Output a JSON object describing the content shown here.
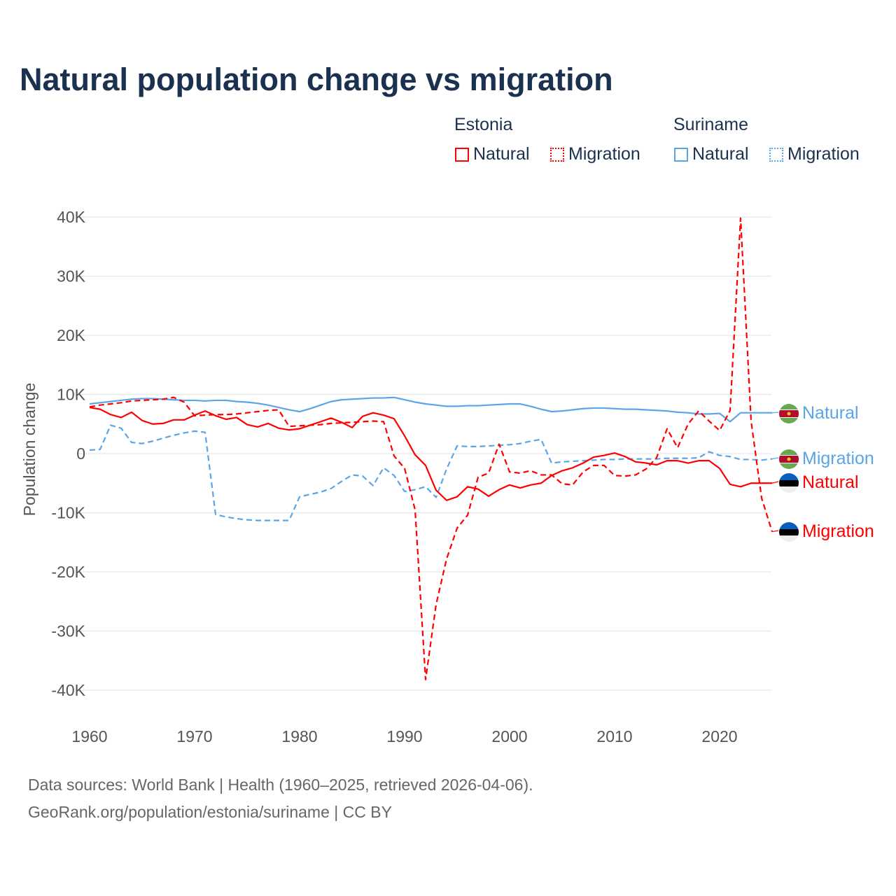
{
  "chart_data": {
    "type": "line",
    "title": "Natural population change vs migration",
    "ylabel": "Population change",
    "xlabel": "",
    "xlim": [
      1960,
      2025
    ],
    "ylim": [
      -40000,
      40000
    ],
    "x_ticks": [
      "1960",
      "1970",
      "1980",
      "1990",
      "2000",
      "2010",
      "2020"
    ],
    "y_ticks": [
      "40K",
      "30K",
      "20K",
      "10K",
      "0",
      "-10K",
      "-20K",
      "-30K",
      "-40K"
    ],
    "y_tick_values": [
      40,
      30,
      20,
      10,
      0,
      -10,
      -20,
      -30,
      -40
    ],
    "units": "thousands",
    "grid": true,
    "legend_placement": "top-right",
    "legend": {
      "groups": [
        {
          "name": "Estonia",
          "items": [
            "Natural",
            "Migration"
          ]
        },
        {
          "name": "Suriname",
          "items": [
            "Natural",
            "Migration"
          ]
        }
      ]
    },
    "years_start": 1960,
    "series": [
      {
        "name": "Suriname Natural",
        "label": "Natural",
        "color": "#5aa5e8",
        "dash": false,
        "values": [
          8.4,
          8.6,
          8.8,
          9.0,
          9.2,
          9.3,
          9.3,
          9.2,
          9.1,
          9.0,
          9.0,
          8.9,
          9.0,
          9.0,
          8.8,
          8.7,
          8.5,
          8.2,
          7.8,
          7.4,
          7.1,
          7.6,
          8.2,
          8.8,
          9.1,
          9.2,
          9.3,
          9.4,
          9.4,
          9.5,
          9.1,
          8.7,
          8.4,
          8.2,
          8.0,
          8.0,
          8.1,
          8.1,
          8.2,
          8.3,
          8.4,
          8.4,
          8.0,
          7.5,
          7.1,
          7.2,
          7.4,
          7.6,
          7.7,
          7.7,
          7.6,
          7.5,
          7.5,
          7.4,
          7.3,
          7.2,
          7.0,
          6.9,
          6.7,
          6.7,
          6.8,
          5.4,
          6.9,
          6.9,
          6.9,
          6.9
        ]
      },
      {
        "name": "Suriname Migration",
        "label": "Migration",
        "color": "#5aa5e8",
        "dash": true,
        "values": [
          0.6,
          0.7,
          4.8,
          4.3,
          1.9,
          1.7,
          2.1,
          2.6,
          3.1,
          3.5,
          3.8,
          3.6,
          -10.3,
          -10.7,
          -11.0,
          -11.2,
          -11.3,
          -11.3,
          -11.3,
          -11.3,
          -7.3,
          -6.9,
          -6.5,
          -5.9,
          -4.7,
          -3.6,
          -3.8,
          -5.4,
          -2.4,
          -3.7,
          -6.4,
          -6.1,
          -5.6,
          -7.4,
          -2.6,
          1.3,
          1.2,
          1.2,
          1.3,
          1.4,
          1.5,
          1.7,
          2.1,
          2.4,
          -1.6,
          -1.4,
          -1.3,
          -1.2,
          -1.1,
          -1.0,
          -1.0,
          -0.9,
          -0.9,
          -0.9,
          -0.9,
          -0.8,
          -0.8,
          -0.8,
          -0.7,
          0.3,
          -0.3,
          -0.5,
          -1.0,
          -1.0,
          -1.1,
          -0.9
        ]
      },
      {
        "name": "Estonia Natural",
        "label": "Natural",
        "color": "#ff0000",
        "dash": false,
        "values": [
          7.8,
          7.5,
          6.6,
          6.1,
          7.0,
          5.6,
          5.0,
          5.1,
          5.7,
          5.7,
          6.5,
          7.2,
          6.4,
          5.8,
          6.1,
          4.9,
          4.5,
          5.1,
          4.3,
          4.0,
          4.2,
          4.8,
          5.4,
          6.0,
          5.3,
          4.4,
          6.3,
          6.9,
          6.5,
          5.9,
          3.0,
          -0.2,
          -2.0,
          -6.2,
          -7.9,
          -7.3,
          -5.6,
          -6.0,
          -7.2,
          -6.1,
          -5.3,
          -5.8,
          -5.3,
          -5.0,
          -3.7,
          -2.9,
          -2.4,
          -1.6,
          -0.6,
          -0.3,
          0.1,
          -0.5,
          -1.4,
          -1.6,
          -1.9,
          -1.2,
          -1.2,
          -1.6,
          -1.2,
          -1.2,
          -2.5,
          -5.2,
          -5.6,
          -5.0,
          -5.0,
          -5.0
        ]
      },
      {
        "name": "Estonia Migration",
        "label": "Migration",
        "color": "#ff0000",
        "dash": true,
        "values": [
          7.9,
          8.2,
          8.4,
          8.6,
          8.9,
          9.0,
          9.1,
          9.2,
          9.5,
          8.7,
          6.4,
          6.5,
          6.6,
          6.6,
          6.7,
          6.9,
          7.1,
          7.3,
          7.4,
          4.6,
          4.7,
          4.8,
          4.9,
          5.1,
          5.2,
          5.3,
          5.4,
          5.5,
          5.4,
          -0.4,
          -2.5,
          -9.5,
          -38.2,
          -25.5,
          -17.8,
          -12.6,
          -10.4,
          -4.0,
          -3.3,
          1.6,
          -3.1,
          -3.3,
          -2.9,
          -3.6,
          -3.6,
          -5.1,
          -5.3,
          -3.1,
          -2.0,
          -2.0,
          -3.7,
          -3.8,
          -3.6,
          -2.6,
          -0.7,
          4.2,
          1.0,
          5.0,
          7.2,
          5.5,
          3.9,
          7.3,
          39.8,
          5.5,
          -7.5,
          -13.2
        ]
      }
    ]
  },
  "footer": {
    "line1": "Data sources: World Bank | Health (1960–2025, retrieved 2026-04-06).",
    "line2": "GeoRank.org/population/estonia/suriname | CC BY"
  }
}
